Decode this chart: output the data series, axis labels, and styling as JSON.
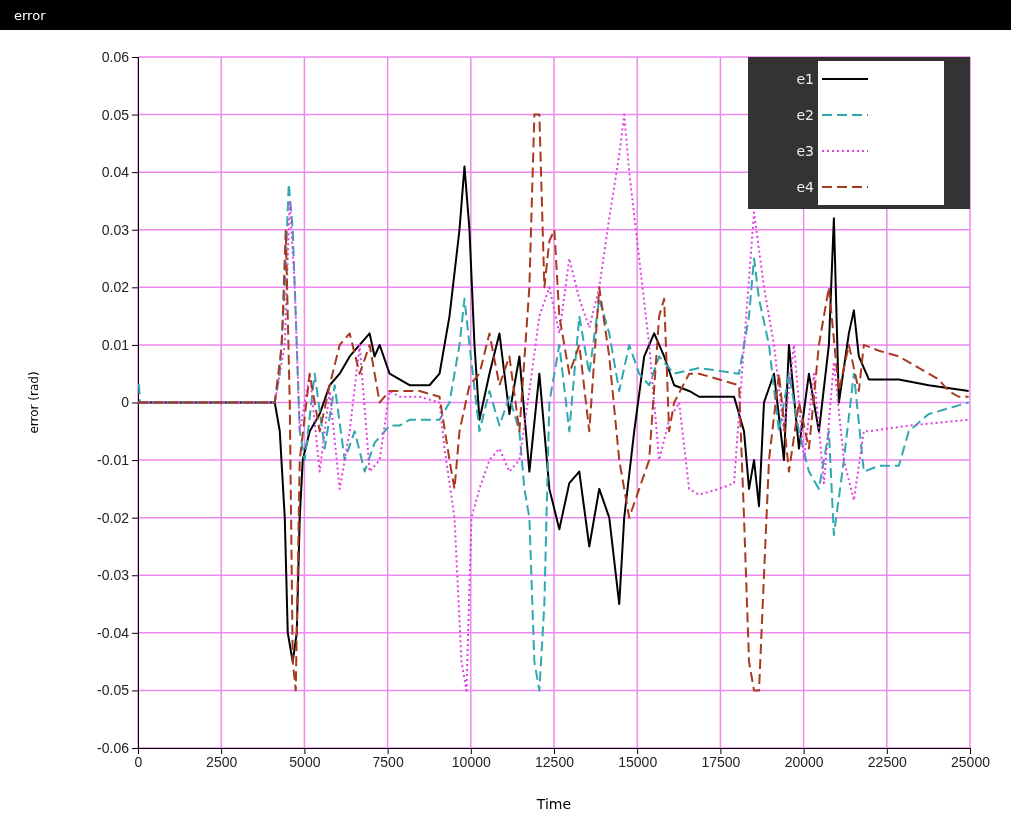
{
  "chart_data": {
    "type": "line",
    "title": "error",
    "xlabel": "Time",
    "ylabel": "error (rad)",
    "xlim": [
      0,
      25000
    ],
    "ylim": [
      -0.06,
      0.06
    ],
    "xticks": [
      0,
      2500,
      5000,
      7500,
      10000,
      12500,
      15000,
      17500,
      20000,
      22500,
      25000
    ],
    "yticks": [
      -0.06,
      -0.05,
      -0.04,
      -0.03,
      -0.02,
      -0.01,
      0,
      0.01,
      0.02,
      0.03,
      0.04,
      0.05,
      0.06
    ],
    "grid": true,
    "legend": "top right",
    "series": [
      {
        "name": "e1",
        "color": "#000000",
        "line_style": "solid",
        "x": [
          0,
          4110,
          4260,
          4410,
          4500,
          4650,
          4770,
          4860,
          4950,
          5160,
          5460,
          5760,
          6060,
          6360,
          6660,
          6960,
          7110,
          7260,
          7560,
          7860,
          8160,
          8760,
          9060,
          9360,
          9660,
          9810,
          9960,
          10110,
          10260,
          10560,
          10860,
          11160,
          11460,
          11760,
          12060,
          12360,
          12660,
          12960,
          13260,
          13560,
          13860,
          14160,
          14460,
          14610,
          14910,
          15210,
          15510,
          15810,
          16110,
          16560,
          16860,
          17910,
          18210,
          18360,
          18510,
          18660,
          18810,
          19110,
          19410,
          19560,
          19860,
          20160,
          20460,
          20760,
          20910,
          21060,
          21360,
          21510,
          21660,
          21960,
          22860,
          23760,
          24960
        ],
        "values": [
          0,
          0,
          -0.005,
          -0.02,
          -0.04,
          -0.045,
          -0.04,
          -0.02,
          -0.01,
          -0.005,
          -0.002,
          0.003,
          0.005,
          0.008,
          0.01,
          0.012,
          0.008,
          0.01,
          0.005,
          0.004,
          0.003,
          0.003,
          0.005,
          0.015,
          0.03,
          0.041,
          0.03,
          0.01,
          -0.003,
          0.005,
          0.012,
          -0.002,
          0.008,
          -0.012,
          0.005,
          -0.015,
          -0.022,
          -0.014,
          -0.012,
          -0.025,
          -0.015,
          -0.02,
          -0.035,
          -0.02,
          -0.005,
          0.008,
          0.012,
          0.008,
          0.003,
          0.002,
          0.001,
          0.001,
          -0.005,
          -0.015,
          -0.01,
          -0.018,
          0,
          0.005,
          -0.01,
          0.01,
          -0.008,
          0.005,
          -0.005,
          0.01,
          0.032,
          0,
          0.012,
          0.016,
          0.008,
          0.004,
          0.004,
          0.003,
          0.002
        ]
      },
      {
        "name": "e2",
        "color": "#2fa8b0",
        "line_style": "dashed",
        "x": [
          0,
          30,
          60,
          4110,
          4260,
          4410,
          4530,
          4650,
          4770,
          4860,
          5010,
          5310,
          5610,
          5910,
          6210,
          6510,
          6810,
          7110,
          7410,
          7560,
          7860,
          8160,
          9060,
          9360,
          9660,
          9810,
          9960,
          10260,
          10560,
          10860,
          11160,
          11460,
          11610,
          11760,
          11910,
          12060,
          12210,
          12360,
          12660,
          12960,
          13260,
          13560,
          13860,
          14160,
          14460,
          14760,
          15060,
          15360,
          15660,
          16110,
          16860,
          18060,
          18360,
          18510,
          18660,
          18960,
          19260,
          19560,
          19860,
          20160,
          20460,
          20760,
          20910,
          21210,
          21510,
          21810,
          22260,
          22860,
          23160,
          23760,
          24360,
          24960
        ],
        "values": [
          0.003,
          0.003,
          0,
          0,
          0.005,
          0.02,
          0.038,
          0.03,
          0.01,
          -0.005,
          -0.01,
          0.005,
          -0.008,
          0.003,
          -0.01,
          -0.005,
          -0.012,
          -0.007,
          -0.005,
          -0.004,
          -0.004,
          -0.003,
          -0.003,
          0,
          0.01,
          0.018,
          0.01,
          -0.005,
          0.002,
          -0.004,
          0.001,
          -0.005,
          -0.015,
          -0.02,
          -0.045,
          -0.05,
          -0.035,
          0,
          0.01,
          -0.005,
          0.015,
          0.005,
          0.018,
          0.012,
          0.002,
          0.01,
          0.005,
          0.003,
          0.008,
          0.005,
          0.006,
          0.005,
          0.015,
          0.025,
          0.018,
          0.01,
          -0.005,
          0.005,
          -0.005,
          -0.012,
          -0.015,
          -0.005,
          -0.023,
          -0.01,
          0.005,
          -0.012,
          -0.011,
          -0.011,
          -0.005,
          -0.002,
          -0.001,
          0
        ]
      },
      {
        "name": "e3",
        "color": "#e040e0",
        "line_style": "dotted",
        "x": [
          0,
          4110,
          4410,
          4560,
          4710,
          4860,
          5160,
          5460,
          5760,
          6060,
          6360,
          6660,
          6960,
          7260,
          7560,
          7860,
          8460,
          9060,
          9210,
          9510,
          9720,
          9870,
          10020,
          10260,
          10560,
          10860,
          11160,
          11460,
          11760,
          12060,
          12360,
          12660,
          12960,
          13260,
          13560,
          13860,
          14160,
          14460,
          14610,
          14760,
          15060,
          15360,
          15660,
          15960,
          16260,
          16560,
          16860,
          17460,
          17910,
          18210,
          18510,
          18810,
          19110,
          19410,
          19710,
          20010,
          20310,
          20610,
          20910,
          21210,
          21510,
          21810,
          21960,
          23160,
          24960
        ],
        "values": [
          0,
          0,
          0.01,
          0.035,
          0.02,
          -0.005,
          0.005,
          -0.012,
          0.002,
          -0.015,
          -0.005,
          0.01,
          -0.012,
          -0.01,
          0.002,
          0.001,
          0.001,
          0,
          -0.008,
          -0.02,
          -0.045,
          -0.05,
          -0.02,
          -0.015,
          -0.01,
          -0.008,
          -0.012,
          -0.01,
          0.002,
          0.015,
          0.02,
          0.012,
          0.025,
          0.018,
          0.013,
          0.02,
          0.032,
          0.043,
          0.05,
          0.04,
          0.025,
          0.01,
          -0.01,
          -0.003,
          0,
          -0.015,
          -0.016,
          -0.015,
          -0.014,
          0.01,
          0.033,
          0.02,
          0.01,
          -0.005,
          0.01,
          -0.01,
          0.005,
          -0.014,
          0.007,
          -0.01,
          -0.017,
          -0.005,
          -0.005,
          -0.004,
          -0.003
        ]
      },
      {
        "name": "e4",
        "color": "#a83a20",
        "line_style": "dashed",
        "x": [
          0,
          4110,
          4320,
          4440,
          4560,
          4650,
          4740,
          4860,
          5160,
          5460,
          5760,
          6060,
          6360,
          6660,
          6960,
          7260,
          7560,
          8460,
          9060,
          9360,
          9510,
          9660,
          9960,
          10260,
          10560,
          10860,
          11160,
          11460,
          11760,
          11910,
          12060,
          12210,
          12360,
          12510,
          12660,
          12960,
          13260,
          13560,
          13860,
          14160,
          14460,
          14760,
          15060,
          15360,
          15660,
          15810,
          15960,
          16110,
          16560,
          16860,
          17460,
          18060,
          18210,
          18360,
          18510,
          18660,
          18810,
          18960,
          19260,
          19560,
          19860,
          20160,
          20460,
          20760,
          21060,
          21360,
          21660,
          21810,
          22260,
          22860,
          23460,
          24060,
          24360,
          24660,
          24960
        ],
        "values": [
          0,
          0,
          0.01,
          0.03,
          0,
          -0.045,
          -0.05,
          -0.01,
          0.005,
          -0.005,
          0.003,
          0.01,
          0.012,
          0.005,
          0.01,
          0,
          0.002,
          0.002,
          0.001,
          -0.01,
          -0.015,
          -0.005,
          0.003,
          0.005,
          0.012,
          0.003,
          0.008,
          -0.005,
          0.02,
          0.05,
          0.05,
          0.02,
          0.028,
          0.03,
          0.015,
          0.005,
          0.01,
          -0.005,
          0.02,
          0.008,
          -0.01,
          -0.02,
          -0.015,
          -0.01,
          0.015,
          0.018,
          -0.005,
          0,
          0.005,
          0.005,
          0.004,
          0.003,
          -0.02,
          -0.045,
          -0.05,
          -0.05,
          -0.03,
          -0.01,
          0.005,
          -0.012,
          0,
          -0.008,
          0.01,
          0.02,
          0.002,
          0.01,
          0.002,
          0.01,
          0.009,
          0.008,
          0.006,
          0.004,
          0.002,
          0.001,
          0.001
        ]
      }
    ]
  }
}
